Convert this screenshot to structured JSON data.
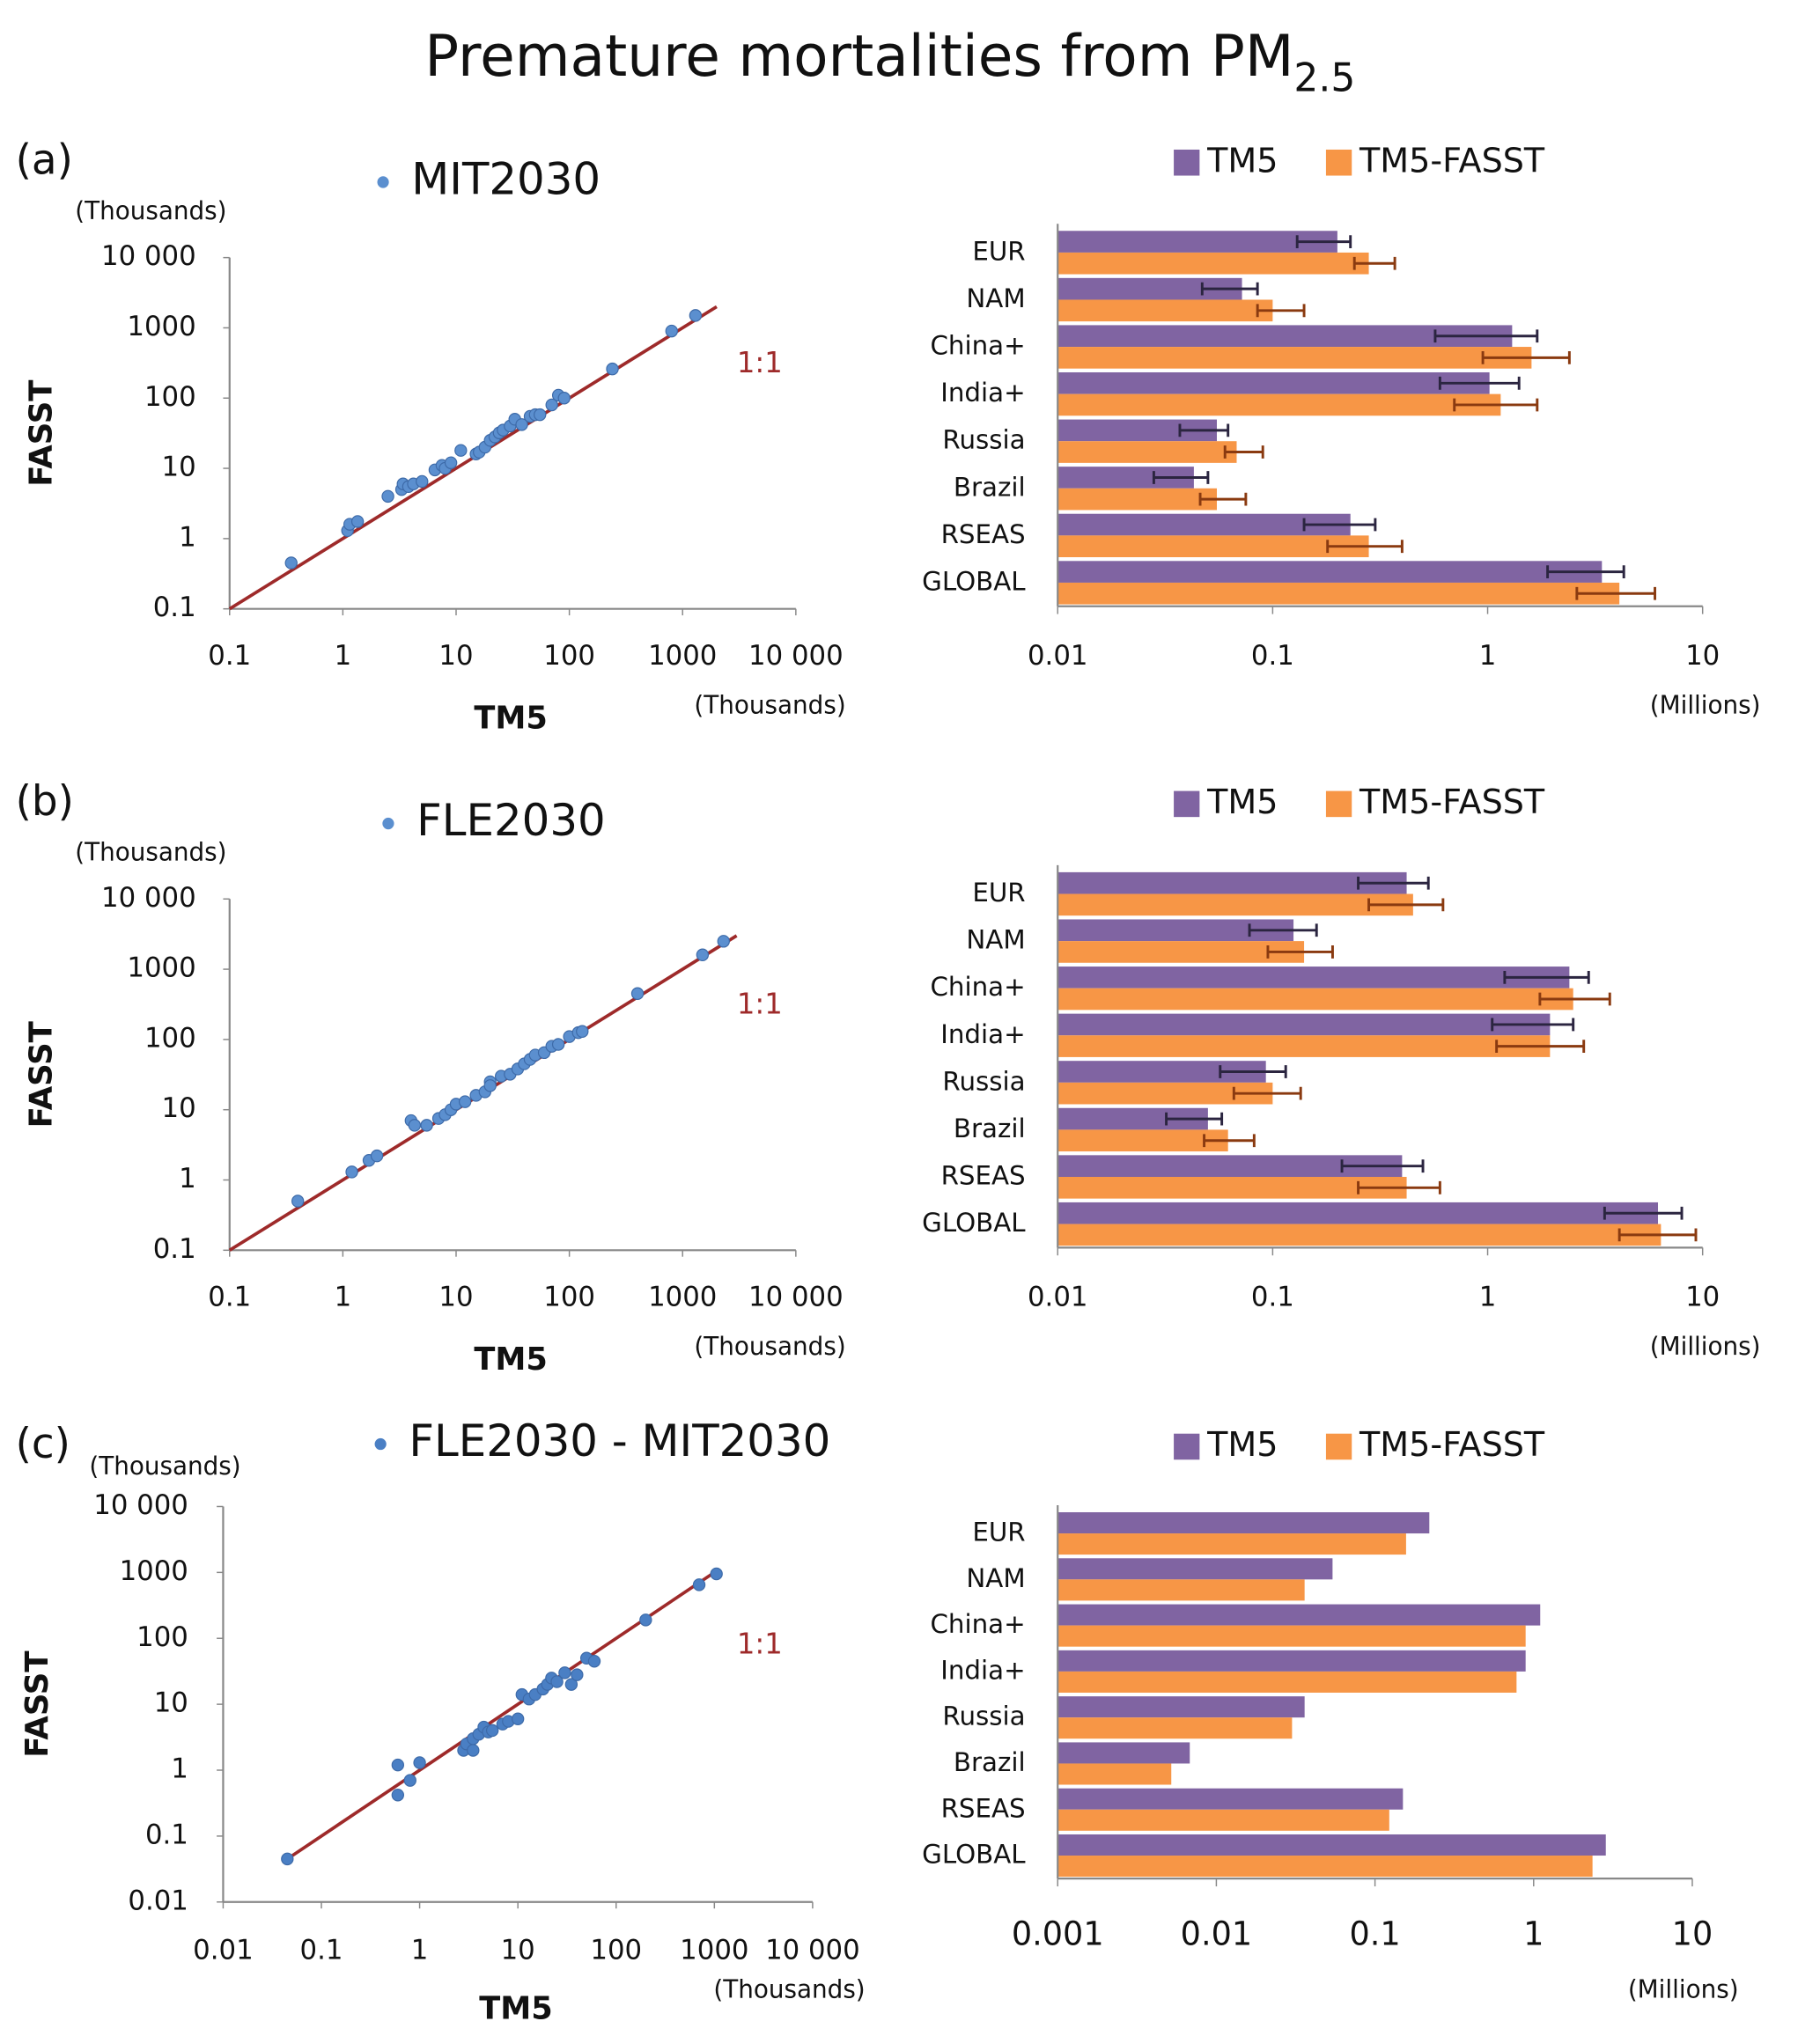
{
  "title": "Premature mortalities from PM",
  "title_subscript": "2.5",
  "chart_data": [
    {
      "type": "scatter",
      "panel_label": "(a)",
      "x_label": "TM5",
      "y_label": "FASST",
      "x_unit": "(Thousands)",
      "y_unit": "(Thousands)",
      "log_scale": true,
      "xlim": [
        0.1,
        10000
      ],
      "ylim": [
        0.1,
        10000
      ],
      "xticks": [
        0.1,
        1,
        10,
        100,
        1000,
        {
          "value": 10000,
          "label": "10 000"
        }
      ],
      "yticks": [
        0.1,
        1,
        10,
        100,
        1000,
        {
          "value": 10000,
          "label": "10 000"
        }
      ],
      "reference_line": {
        "label": "1:1",
        "color": "#9e2a2a",
        "x": [
          0.1,
          2000
        ]
      },
      "series": [
        {
          "name": "MIT2030",
          "color": "#5b8fcf",
          "x": [
            0.35,
            1.1,
            1.15,
            1.35,
            2.5,
            3.3,
            3.4,
            3.8,
            4.2,
            5,
            6.5,
            7.5,
            8,
            9,
            11,
            15,
            16,
            18,
            20,
            22,
            24,
            26,
            30,
            33,
            38,
            45,
            50,
            55,
            70,
            80,
            90,
            240,
            800,
            1300
          ],
          "y": [
            0.45,
            1.3,
            1.6,
            1.75,
            4,
            5,
            6,
            5.5,
            6,
            6.5,
            9.5,
            11,
            10,
            12,
            18,
            16,
            17,
            20,
            25,
            28,
            32,
            35,
            40,
            50,
            42,
            55,
            58,
            58,
            80,
            110,
            100,
            260,
            900,
            1500
          ]
        }
      ]
    },
    {
      "type": "hbar",
      "x_unit": "(Millions)",
      "log_scale": true,
      "xlim": [
        0.01,
        10
      ],
      "xticks": [
        0.01,
        0.1,
        1,
        10
      ],
      "categories": [
        "EUR",
        "NAM",
        "China+",
        "India+",
        "Russia",
        "Brazil",
        "RSEAS",
        "GLOBAL"
      ],
      "series": [
        {
          "name": "TM5",
          "color": "#8064a2",
          "error_color": "#2b2540",
          "values": [
            0.2,
            0.072,
            1.3,
            1.02,
            0.055,
            0.043,
            0.23,
            3.4
          ],
          "errors": [
            [
              0.13,
              0.23
            ],
            [
              0.047,
              0.085
            ],
            [
              0.57,
              1.7
            ],
            [
              0.6,
              1.4
            ],
            [
              0.037,
              0.062
            ],
            [
              0.028,
              0.05
            ],
            [
              0.14,
              0.3
            ],
            [
              1.9,
              4.3
            ]
          ]
        },
        {
          "name": "TM5-FASST",
          "color": "#f79646",
          "error_color": "#8a3a10",
          "values": [
            0.28,
            0.1,
            1.6,
            1.15,
            0.068,
            0.055,
            0.28,
            4.1
          ],
          "errors": [
            [
              0.24,
              0.37
            ],
            [
              0.085,
              0.14
            ],
            [
              0.95,
              2.4
            ],
            [
              0.7,
              1.7
            ],
            [
              0.06,
              0.09
            ],
            [
              0.046,
              0.075
            ],
            [
              0.18,
              0.4
            ],
            [
              2.6,
              6
            ]
          ]
        }
      ]
    },
    {
      "type": "scatter",
      "panel_label": "(b)",
      "x_label": "TM5",
      "y_label": "FASST",
      "x_unit": "(Thousands)",
      "y_unit": "(Thousands)",
      "log_scale": true,
      "xlim": [
        0.1,
        10000
      ],
      "ylim": [
        0.1,
        10000
      ],
      "xticks": [
        0.1,
        1,
        10,
        100,
        1000,
        {
          "value": 10000,
          "label": "10 000"
        }
      ],
      "yticks": [
        0.1,
        1,
        10,
        100,
        1000,
        {
          "value": 10000,
          "label": "10 000"
        }
      ],
      "reference_line": {
        "label": "1:1",
        "color": "#9e2a2a",
        "x": [
          0.1,
          3000
        ]
      },
      "series": [
        {
          "name": "FLE2030",
          "color": "#5b8fcf",
          "x": [
            0.4,
            1.2,
            1.7,
            2,
            4,
            4.3,
            5.5,
            7,
            8,
            9,
            10,
            12,
            15,
            18,
            20,
            20,
            25,
            30,
            35,
            40,
            45,
            50,
            60,
            70,
            80,
            100,
            120,
            130,
            400,
            1500,
            2300
          ],
          "y": [
            0.5,
            1.3,
            1.9,
            2.2,
            7,
            6,
            6,
            7.5,
            8.5,
            10,
            12,
            13,
            16,
            18,
            25,
            22,
            30,
            32,
            38,
            45,
            52,
            60,
            65,
            80,
            85,
            110,
            125,
            130,
            450,
            1600,
            2500
          ]
        }
      ]
    },
    {
      "type": "hbar",
      "x_unit": "(Millions)",
      "log_scale": true,
      "xlim": [
        0.01,
        10
      ],
      "xticks": [
        0.01,
        0.1,
        1,
        10
      ],
      "categories": [
        "EUR",
        "NAM",
        "China+",
        "India+",
        "Russia",
        "Brazil",
        "RSEAS",
        "GLOBAL"
      ],
      "series": [
        {
          "name": "TM5",
          "color": "#8064a2",
          "error_color": "#2b2540",
          "values": [
            0.42,
            0.125,
            2.4,
            1.95,
            0.093,
            0.05,
            0.4,
            6.2
          ],
          "errors": [
            [
              0.25,
              0.53
            ],
            [
              0.078,
              0.16
            ],
            [
              1.2,
              2.95
            ],
            [
              1.05,
              2.5
            ],
            [
              0.057,
              0.115
            ],
            [
              0.032,
              0.058
            ],
            [
              0.21,
              0.5
            ],
            [
              3.5,
              8
            ]
          ]
        },
        {
          "name": "TM5-FASST",
          "color": "#f79646",
          "error_color": "#8a3a10",
          "values": [
            0.45,
            0.14,
            2.5,
            1.95,
            0.1,
            0.062,
            0.42,
            6.4
          ],
          "errors": [
            [
              0.28,
              0.62
            ],
            [
              0.095,
              0.19
            ],
            [
              1.75,
              3.7
            ],
            [
              1.1,
              2.8
            ],
            [
              0.066,
              0.135
            ],
            [
              0.048,
              0.082
            ],
            [
              0.25,
              0.6
            ],
            [
              4.1,
              9.3
            ]
          ]
        }
      ]
    },
    {
      "type": "scatter",
      "panel_label": "(c)",
      "x_label": "TM5",
      "y_label": "FASST",
      "x_unit": "(Thousands)",
      "y_unit": "(Thousands)",
      "log_scale": true,
      "xlim": [
        0.01,
        10000
      ],
      "ylim": [
        0.01,
        10000
      ],
      "xticks": [
        0.01,
        0.1,
        1,
        10,
        100,
        1000,
        {
          "value": 10000,
          "label": "10 000"
        }
      ],
      "yticks": [
        0.01,
        0.1,
        1,
        10,
        100,
        1000,
        {
          "value": 10000,
          "label": "10 000"
        }
      ],
      "reference_line": {
        "label": "1:1",
        "color": "#9e2a2a",
        "x": [
          0.045,
          1100
        ]
      },
      "series": [
        {
          "name": "FLE2030 - MIT2030",
          "color": "#4a7fc4",
          "x": [
            0.045,
            0.6,
            0.6,
            0.8,
            1,
            2.8,
            3,
            3.5,
            3.5,
            4,
            4.5,
            5,
            5.5,
            7,
            8,
            10,
            11,
            13,
            15,
            18,
            20,
            22,
            25,
            30,
            35,
            40,
            50,
            60,
            200,
            700,
            1050
          ],
          "y": [
            0.045,
            1.2,
            0.42,
            0.7,
            1.3,
            2,
            2.5,
            2,
            3,
            3.5,
            4.5,
            3.8,
            4,
            5,
            5.5,
            6,
            14,
            12,
            14,
            17,
            20,
            25,
            22,
            30,
            20,
            28,
            50,
            45,
            190,
            650,
            950
          ]
        }
      ]
    },
    {
      "type": "hbar",
      "x_unit": "(Millions)",
      "log_scale": true,
      "xlim": [
        0.001,
        10
      ],
      "xticks": [
        0.001,
        0.01,
        0.1,
        1,
        10
      ],
      "categories": [
        "EUR",
        "NAM",
        "China+",
        "India+",
        "Russia",
        "Brazil",
        "RSEAS",
        "GLOBAL"
      ],
      "series": [
        {
          "name": "TM5",
          "color": "#8064a2",
          "values": [
            0.22,
            0.054,
            1.1,
            0.89,
            0.036,
            0.0068,
            0.15,
            2.85
          ]
        },
        {
          "name": "TM5-FASST",
          "color": "#f79646",
          "values": [
            0.157,
            0.036,
            0.89,
            0.78,
            0.03,
            0.0052,
            0.123,
            2.35
          ]
        }
      ]
    }
  ]
}
